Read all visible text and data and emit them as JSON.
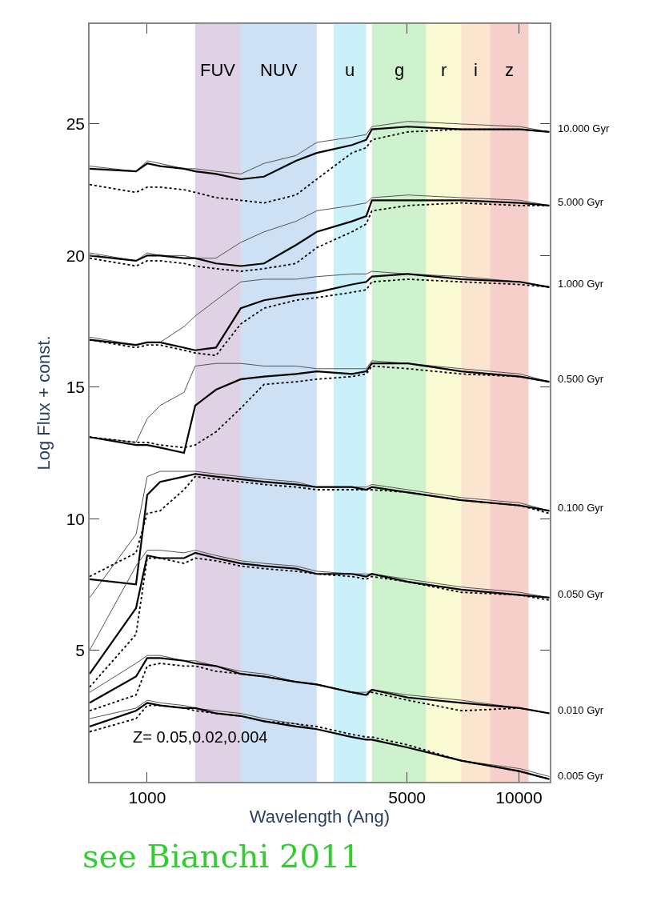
{
  "chart_data": {
    "type": "line",
    "xlabel": "Wavelength (Ang)",
    "ylabel": "Log Flux + const.",
    "log": "x",
    "xlim": [
      700,
      12100
    ],
    "xticks": [
      1000,
      5000,
      10000
    ],
    "ylim": [
      0,
      28.8
    ],
    "yticks": [
      5,
      10,
      15,
      20,
      25
    ],
    "grid": false,
    "x": [
      700,
      933,
      1000,
      1083,
      1256,
      1346,
      1531,
      1785,
      2061,
      2512,
      2857,
      3553,
      3883,
      4021,
      5024,
      7000,
      10050,
      12070
    ],
    "series": [
      {
        "color": "#555555",
        "line_style": "solid",
        "values": [
          23.4,
          23.2,
          23.6,
          23.5,
          23.3,
          23.3,
          23.2,
          23.1,
          23.5,
          23.8,
          24.3,
          24.5,
          24.6,
          24.9,
          25.1,
          25.0,
          24.9,
          24.7
        ]
      },
      {
        "color": "#000000",
        "line_style": "solid",
        "values": [
          23.3,
          23.2,
          23.5,
          23.4,
          23.3,
          23.2,
          23.1,
          22.9,
          23.0,
          23.6,
          23.9,
          24.2,
          24.4,
          24.8,
          24.9,
          24.8,
          24.8,
          24.7
        ]
      },
      {
        "color": "#000000",
        "line_style": "dotted",
        "values": [
          22.7,
          22.4,
          22.6,
          22.6,
          22.5,
          22.4,
          22.2,
          22.1,
          22.0,
          22.3,
          22.9,
          23.9,
          24.1,
          24.4,
          24.7,
          24.8,
          24.8,
          24.7
        ]
      },
      {
        "color": "#555555",
        "line_style": "solid",
        "values": [
          20.1,
          19.8,
          20.1,
          20.0,
          20.0,
          19.9,
          19.9,
          20.5,
          20.9,
          21.3,
          21.7,
          21.9,
          22.0,
          22.2,
          22.3,
          22.2,
          22.1,
          21.9
        ]
      },
      {
        "color": "#000000",
        "line_style": "solid",
        "values": [
          20.0,
          19.8,
          20.0,
          20.0,
          19.9,
          19.9,
          19.7,
          19.6,
          19.7,
          20.4,
          20.9,
          21.3,
          21.5,
          22.1,
          22.1,
          22.1,
          22.0,
          21.9
        ]
      },
      {
        "color": "#000000",
        "line_style": "dotted",
        "values": [
          19.9,
          19.6,
          19.8,
          19.8,
          19.7,
          19.6,
          19.5,
          19.4,
          19.5,
          19.7,
          20.3,
          20.9,
          21.2,
          21.7,
          21.9,
          22.0,
          21.9,
          21.9
        ]
      },
      {
        "color": "#555555",
        "line_style": "solid",
        "values": [
          16.9,
          16.6,
          16.7,
          16.7,
          17.3,
          17.7,
          18.3,
          19.0,
          19.1,
          19.1,
          19.2,
          19.3,
          19.3,
          19.4,
          19.3,
          19.2,
          19.0,
          18.8
        ]
      },
      {
        "color": "#000000",
        "line_style": "solid",
        "values": [
          16.8,
          16.6,
          16.7,
          16.7,
          16.5,
          16.4,
          16.5,
          18.0,
          18.3,
          18.5,
          18.6,
          18.9,
          19.0,
          19.2,
          19.3,
          19.1,
          19.0,
          18.8
        ]
      },
      {
        "color": "#000000",
        "line_style": "dotted",
        "values": [
          16.8,
          16.5,
          16.6,
          16.6,
          16.4,
          16.3,
          16.2,
          17.4,
          18.0,
          18.3,
          18.4,
          18.6,
          18.7,
          19.0,
          19.1,
          19.0,
          18.9,
          18.8
        ]
      },
      {
        "color": "#555555",
        "line_style": "solid",
        "values": [
          13.1,
          12.9,
          13.8,
          14.3,
          14.8,
          15.8,
          15.9,
          15.9,
          15.8,
          15.8,
          15.7,
          15.7,
          15.7,
          16.0,
          15.9,
          15.7,
          15.5,
          15.2
        ]
      },
      {
        "color": "#000000",
        "line_style": "solid",
        "values": [
          13.1,
          12.8,
          12.8,
          12.7,
          12.5,
          14.3,
          14.9,
          15.3,
          15.4,
          15.5,
          15.6,
          15.5,
          15.6,
          15.9,
          15.9,
          15.6,
          15.4,
          15.2
        ]
      },
      {
        "color": "#000000",
        "line_style": "dotted",
        "values": [
          13.1,
          12.9,
          12.9,
          12.8,
          12.7,
          12.8,
          13.3,
          14.2,
          15.1,
          15.2,
          15.3,
          15.4,
          15.5,
          15.8,
          15.7,
          15.5,
          15.4,
          15.2
        ]
      },
      {
        "color": "#555555",
        "line_style": "solid",
        "values": [
          7.0,
          9.4,
          11.6,
          11.8,
          11.8,
          11.8,
          11.7,
          11.6,
          11.5,
          11.4,
          11.2,
          11.2,
          11.2,
          11.3,
          11.1,
          10.8,
          10.6,
          10.3
        ]
      },
      {
        "color": "#000000",
        "line_style": "solid",
        "values": [
          7.7,
          7.5,
          10.9,
          11.4,
          11.6,
          11.7,
          11.6,
          11.5,
          11.4,
          11.3,
          11.2,
          11.2,
          11.1,
          11.2,
          11.0,
          10.7,
          10.5,
          10.3
        ]
      },
      {
        "color": "#000000",
        "line_style": "dotted",
        "values": [
          7.8,
          8.7,
          10.2,
          10.3,
          11.1,
          11.6,
          11.5,
          11.4,
          11.3,
          11.2,
          11.1,
          11.1,
          11.1,
          11.1,
          11.0,
          10.7,
          10.5,
          10.2
        ]
      },
      {
        "color": "#555555",
        "line_style": "solid",
        "values": [
          5.0,
          8.2,
          8.8,
          8.8,
          8.7,
          8.8,
          8.6,
          8.4,
          8.3,
          8.2,
          8.0,
          7.9,
          7.9,
          7.9,
          7.7,
          7.4,
          7.2,
          7.0
        ]
      },
      {
        "color": "#000000",
        "line_style": "solid",
        "values": [
          4.1,
          6.6,
          8.6,
          8.5,
          8.5,
          8.7,
          8.5,
          8.3,
          8.2,
          8.1,
          7.9,
          7.9,
          7.8,
          7.9,
          7.6,
          7.3,
          7.1,
          7.0
        ]
      },
      {
        "color": "#000000",
        "line_style": "dotted",
        "values": [
          3.6,
          5.6,
          8.5,
          8.5,
          8.3,
          8.5,
          8.4,
          8.2,
          8.1,
          8.0,
          7.9,
          7.8,
          7.7,
          7.8,
          7.6,
          7.2,
          7.1,
          6.9
        ]
      },
      {
        "color": "#555555",
        "line_style": "solid",
        "values": [
          3.4,
          4.5,
          4.8,
          4.8,
          4.6,
          4.6,
          4.4,
          4.2,
          4.1,
          3.8,
          3.7,
          3.4,
          3.4,
          3.5,
          3.3,
          3.1,
          2.8,
          2.6
        ]
      },
      {
        "color": "#000000",
        "line_style": "solid",
        "values": [
          3.0,
          4.0,
          4.7,
          4.7,
          4.6,
          4.5,
          4.4,
          4.1,
          4.0,
          3.8,
          3.7,
          3.4,
          3.3,
          3.5,
          3.2,
          3.0,
          2.8,
          2.6
        ]
      },
      {
        "color": "#000000",
        "line_style": "dotted",
        "values": [
          2.7,
          3.3,
          4.4,
          4.5,
          4.4,
          4.4,
          4.2,
          4.1,
          4.0,
          3.8,
          3.7,
          3.4,
          3.3,
          3.4,
          3.1,
          2.7,
          2.8,
          2.6
        ]
      },
      {
        "color": "#555555",
        "line_style": "solid",
        "values": [
          2.4,
          2.8,
          3.1,
          3.0,
          2.9,
          2.8,
          2.7,
          2.6,
          2.4,
          2.2,
          2.0,
          1.7,
          1.6,
          1.6,
          1.3,
          0.8,
          0.5,
          0.2
        ]
      },
      {
        "color": "#000000",
        "line_style": "solid",
        "values": [
          2.1,
          2.7,
          3.0,
          2.9,
          2.8,
          2.8,
          2.6,
          2.5,
          2.3,
          2.1,
          2.0,
          1.7,
          1.6,
          1.6,
          1.3,
          0.8,
          0.4,
          0.1
        ]
      },
      {
        "color": "#000000",
        "line_style": "dotted",
        "values": [
          1.9,
          2.4,
          2.9,
          2.9,
          2.8,
          2.7,
          2.6,
          2.5,
          2.3,
          2.2,
          2.1,
          1.8,
          1.7,
          1.7,
          1.4,
          0.8,
          0.4,
          0.1
        ]
      }
    ],
    "bands": [
      {
        "axis": "x",
        "from": 1346,
        "to": 1785,
        "label": "FUV",
        "color": "#8e5ea2"
      },
      {
        "axis": "x",
        "from": 1785,
        "to": 2857,
        "label": "NUV",
        "color": "#4a90d9"
      },
      {
        "axis": "x",
        "from": 3171,
        "to": 3883,
        "label": "u",
        "color": "#40c8e8"
      },
      {
        "axis": "x",
        "from": 4021,
        "to": 5630,
        "label": "g",
        "color": "#50d050"
      },
      {
        "axis": "x",
        "from": 5630,
        "to": 7000,
        "label": "r",
        "color": "#f0f060"
      },
      {
        "axis": "x",
        "from": 7000,
        "to": 8369,
        "label": "i",
        "color": "#f0a050"
      },
      {
        "axis": "x",
        "from": 8369,
        "to": 10610,
        "label": "z",
        "color": "#e05040"
      }
    ],
    "annotations": [
      "10.000 Gyr",
      "5.000 Gyr",
      "1.000 Gyr",
      "0.500 Gyr",
      "0.100 Gyr",
      "0.050 Gyr",
      "0.010 Gyr",
      "0.005 Gyr",
      "Z= 0.05,0.02,0.004",
      "see Bianchi 2011"
    ]
  }
}
